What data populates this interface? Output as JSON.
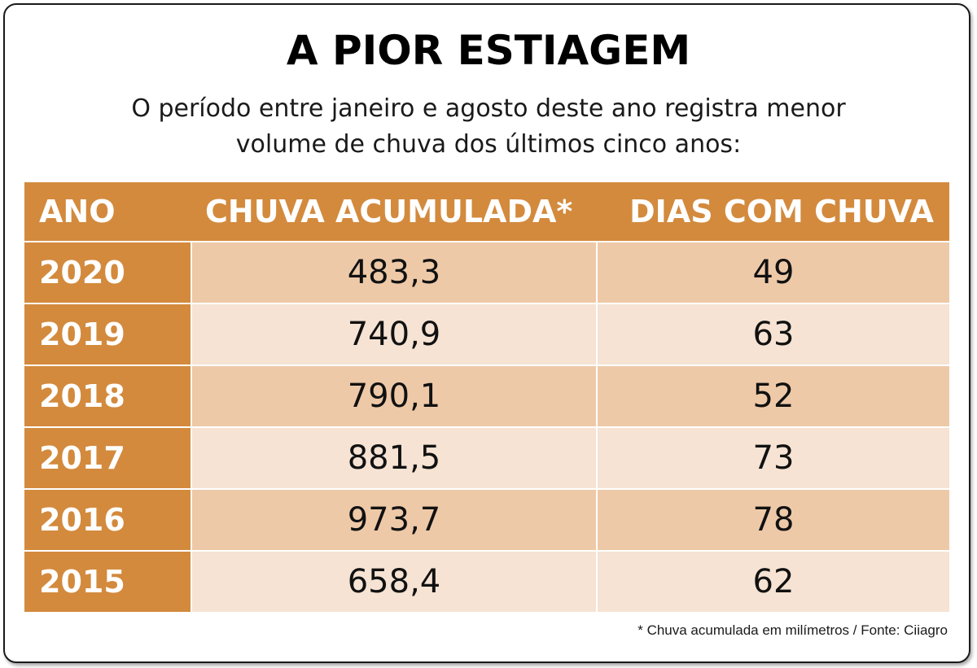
{
  "title": "A PIOR ESTIAGEM",
  "subtitle": {
    "line1": "O período entre janeiro e agosto deste ano registra menor",
    "line2": "volume de chuva dos últimos cinco anos:"
  },
  "columns": {
    "year": "ANO",
    "rain": "CHUVA ACUMULADA*",
    "days": "DIAS COM CHUVA"
  },
  "rows": [
    {
      "year": "2020",
      "rain": "483,3",
      "days": "49"
    },
    {
      "year": "2019",
      "rain": "740,9",
      "days": "63"
    },
    {
      "year": "2018",
      "rain": "790,1",
      "days": "52"
    },
    {
      "year": "2017",
      "rain": "881,5",
      "days": "73"
    },
    {
      "year": "2016",
      "rain": "973,7",
      "days": "78"
    },
    {
      "year": "2015",
      "rain": "658,4",
      "days": "62"
    }
  ],
  "footnote": "* Chuva acumulada em milímetros / Fonte: Ciiagro",
  "colors": {
    "header": "#d38a3d",
    "row_dark": "#eec9a8",
    "row_light": "#f6e3d3"
  },
  "chart_data": {
    "type": "table",
    "title": "A PIOR ESTIAGEM",
    "subtitle": "O período entre janeiro e agosto deste ano registra menor volume de chuva dos últimos cinco anos:",
    "columns": [
      "ANO",
      "CHUVA ACUMULADA*",
      "DIAS COM CHUVA"
    ],
    "categories": [
      "2020",
      "2019",
      "2018",
      "2017",
      "2016",
      "2015"
    ],
    "series": [
      {
        "name": "CHUVA ACUMULADA*",
        "values": [
          483.3,
          740.9,
          790.1,
          881.5,
          973.7,
          658.4
        ]
      },
      {
        "name": "DIAS COM CHUVA",
        "values": [
          49,
          63,
          52,
          73,
          78,
          62
        ]
      }
    ]
  }
}
